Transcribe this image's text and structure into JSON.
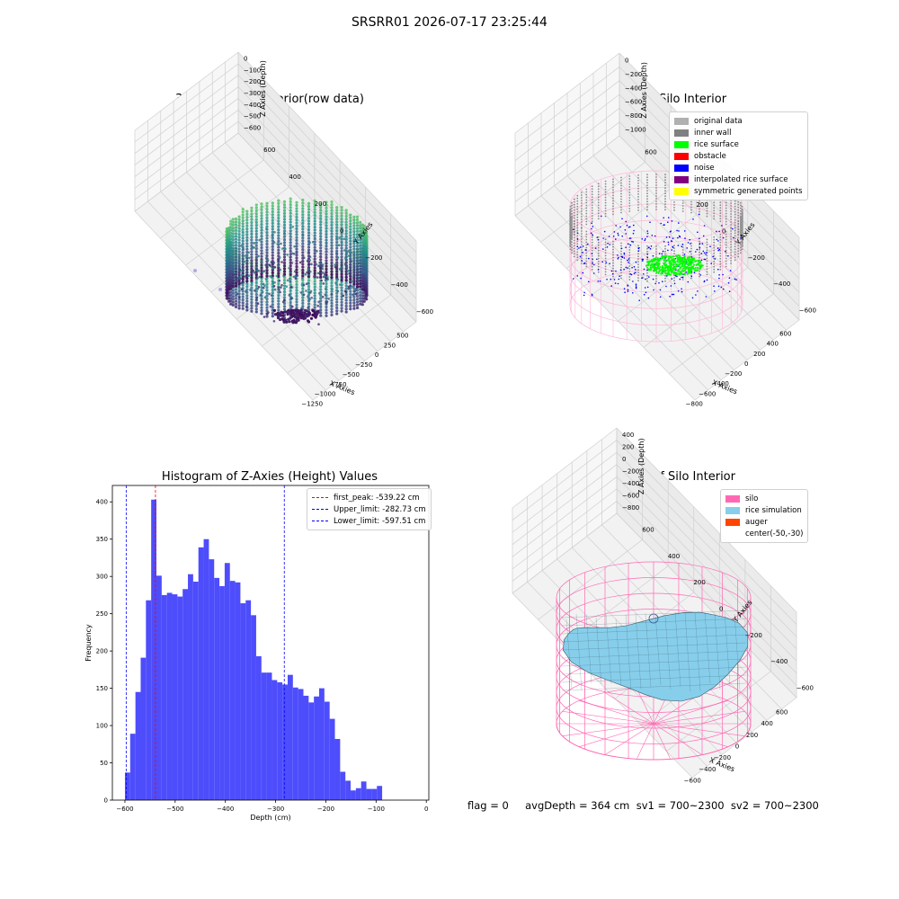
{
  "figure": {
    "suptitle": "SRSRR01 2026-07-17 23:25:44",
    "status_line": "flag = 0     avgDepth = 364 cm  sv1 = 700~2300  sv2 = 700~2300"
  },
  "colors": {
    "histogram": "#4d4dfc",
    "peak_line": "#ff0000",
    "limit_line": "#0000ff",
    "silo": "#ff69b4",
    "rice_simulation": "#87ceeb",
    "auger": "#ff4500",
    "inner_wall": "#808080",
    "rice_surface": "#00ff00",
    "noise": "#0000ff"
  },
  "chart_data": [
    {
      "type": "scatter",
      "title": "3D Plot of Silo Interior(row data)",
      "xlabel": "X Axies",
      "ylabel": "Y Axies",
      "zlabel": "Z Axies (Depth)",
      "x_ticks": [
        "−1250",
        "−1000",
        "−750",
        "−500",
        "−250",
        "0",
        "250",
        "500"
      ],
      "y_ticks": [
        "−600",
        "−400",
        "−200",
        "0",
        "200",
        "400",
        "600"
      ],
      "z_ticks": [
        "0",
        "−100",
        "−200",
        "−300",
        "−400",
        "−500",
        "−600"
      ],
      "xlim": [
        -1350,
        600
      ],
      "ylim": [
        -650,
        650
      ],
      "zlim": [
        -650,
        30
      ],
      "colormap": "viridis"
    },
    {
      "type": "scatter",
      "title": "3D classify of Silo Interior",
      "xlabel": "X Axies",
      "ylabel": "Y Axies",
      "zlabel": "Z Axies (Depth)",
      "x_ticks": [
        "−800",
        "−600",
        "−400",
        "−200",
        "0",
        "200",
        "400",
        "600"
      ],
      "y_ticks": [
        "−600",
        "−400",
        "−200",
        "0",
        "200",
        "400",
        "600"
      ],
      "z_ticks": [
        "0",
        "−200",
        "−400",
        "−600",
        "−800",
        "−1000"
      ],
      "xlim": [
        -850,
        650
      ],
      "ylim": [
        -650,
        650
      ],
      "zlim": [
        -1100,
        50
      ],
      "legend": [
        {
          "label": "original data",
          "color": "#b0b0b0"
        },
        {
          "label": "inner wall",
          "color": "#808080"
        },
        {
          "label": "rice surface",
          "color": "#00ff00"
        },
        {
          "label": "obstacle",
          "color": "#ff0000"
        },
        {
          "label": "noise",
          "color": "#0000ff"
        },
        {
          "label": "interpolated rice surface",
          "color": "#800080"
        },
        {
          "label": "symmetric generated points",
          "color": "#ffff00"
        }
      ]
    },
    {
      "type": "bar",
      "title": "Histogram of Z-Axies (Height) Values",
      "xlabel": "Depth (cm)",
      "ylabel": "Frequency",
      "xlim": [
        -625,
        5
      ],
      "ylim": [
        0,
        422
      ],
      "x_ticks": [
        -600,
        -500,
        -400,
        -300,
        -200,
        -100,
        0
      ],
      "y_ticks": [
        0,
        50,
        100,
        150,
        200,
        250,
        300,
        350,
        400
      ],
      "bins": {
        "start": -600,
        "width": 10.45,
        "values": [
          37,
          89,
          145,
          191,
          268,
          403,
          301,
          275,
          278,
          276,
          273,
          283,
          303,
          293,
          339,
          350,
          323,
          298,
          287,
          318,
          294,
          292,
          264,
          268,
          248,
          193,
          171,
          171,
          161,
          158,
          155,
          168,
          151,
          149,
          140,
          131,
          139,
          150,
          132,
          109,
          82,
          38,
          26,
          13,
          16,
          25,
          15,
          15,
          19
        ]
      },
      "lines": [
        {
          "label": "first_peak: -539.22 cm",
          "x": -539.22,
          "color": "#ff0000"
        },
        {
          "label": "Upper_limit: -282.73 cm",
          "x": -282.73,
          "color": "#0000ff"
        },
        {
          "label": "Lower_limit: -597.51 cm",
          "x": -597.51,
          "color": "#0000ff"
        }
      ]
    },
    {
      "type": "area",
      "title": "3D simulation of Silo Interior",
      "xlabel": "X Axies",
      "ylabel": "Y Axies",
      "zlabel": "Z Axies (Depth)",
      "x_ticks": [
        "−600",
        "−400",
        "−200",
        "0",
        "200",
        "400",
        "600"
      ],
      "y_ticks": [
        "−600",
        "−400",
        "−200",
        "0",
        "200",
        "400",
        "600"
      ],
      "z_ticks": [
        "400",
        "200",
        "0",
        "−200",
        "−400",
        "−600",
        "−800"
      ],
      "xlim": [
        -700,
        700
      ],
      "ylim": [
        -700,
        700
      ],
      "zlim": [
        -900,
        450
      ],
      "legend": [
        {
          "label": "silo",
          "color": "#ff69b4"
        },
        {
          "label": "rice simulation",
          "color": "#87ceeb"
        },
        {
          "label": "auger",
          "color": "#ff4500"
        },
        {
          "label": "center(-50,-30)",
          "color": ""
        }
      ]
    }
  ]
}
